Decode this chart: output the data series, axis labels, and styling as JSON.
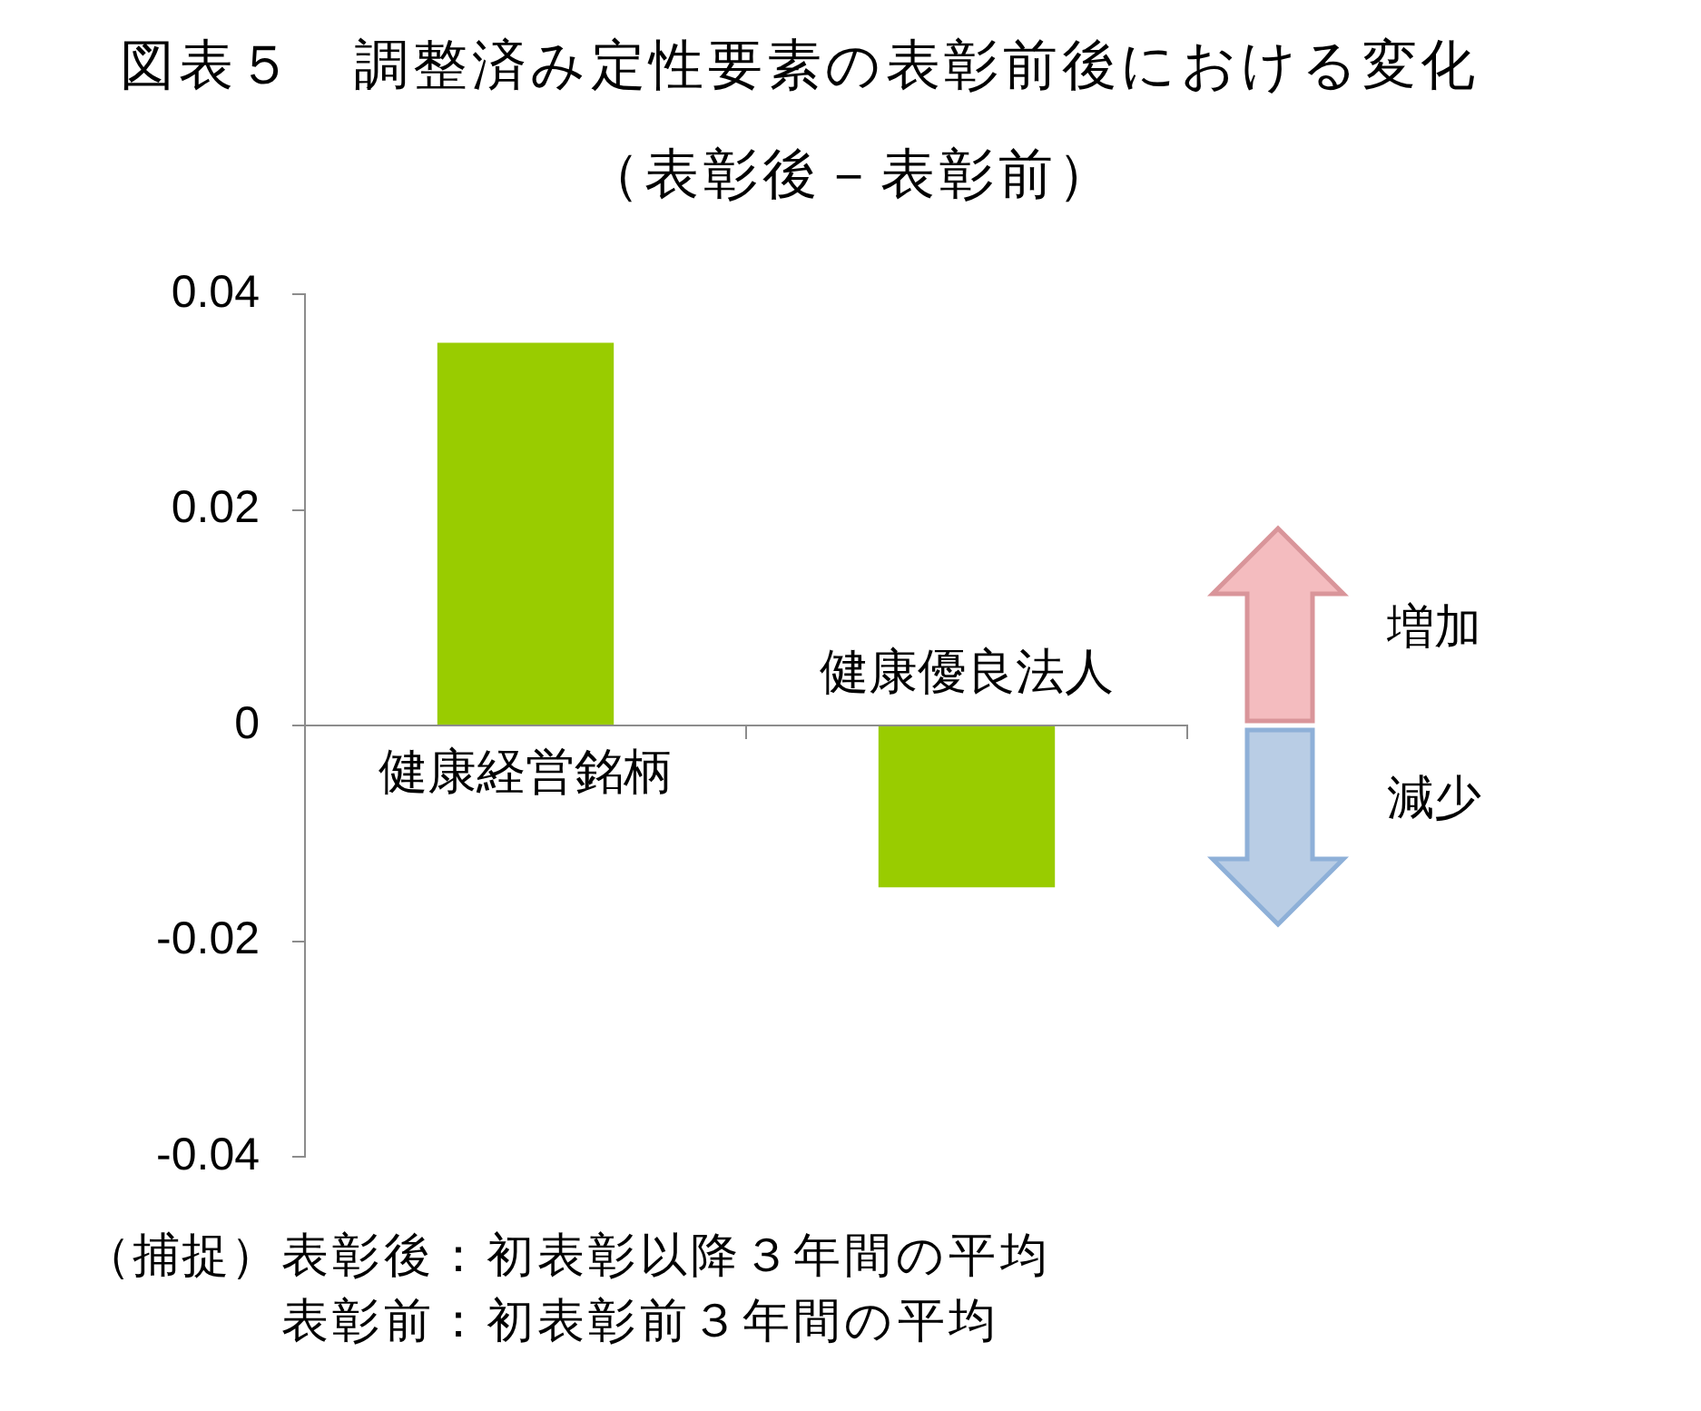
{
  "chart_data": {
    "type": "bar",
    "title": "図表５　調整済み定性要素の表彰前後における変化",
    "subtitle": "（表彰後－表彰前）",
    "categories": [
      "健康経営銘柄",
      "健康優良法人"
    ],
    "values": [
      0.0355,
      -0.015
    ],
    "color": "#99cc00",
    "ylim": [
      -0.04,
      0.04
    ],
    "yticks": [
      -0.04,
      -0.02,
      0,
      0.02,
      0.04
    ],
    "annotations": [
      "増加",
      "減少",
      "（捕捉）",
      "表彰後：初表彰以降３年間の平均",
      "表彰前：初表彰前３年間の平均"
    ]
  }
}
